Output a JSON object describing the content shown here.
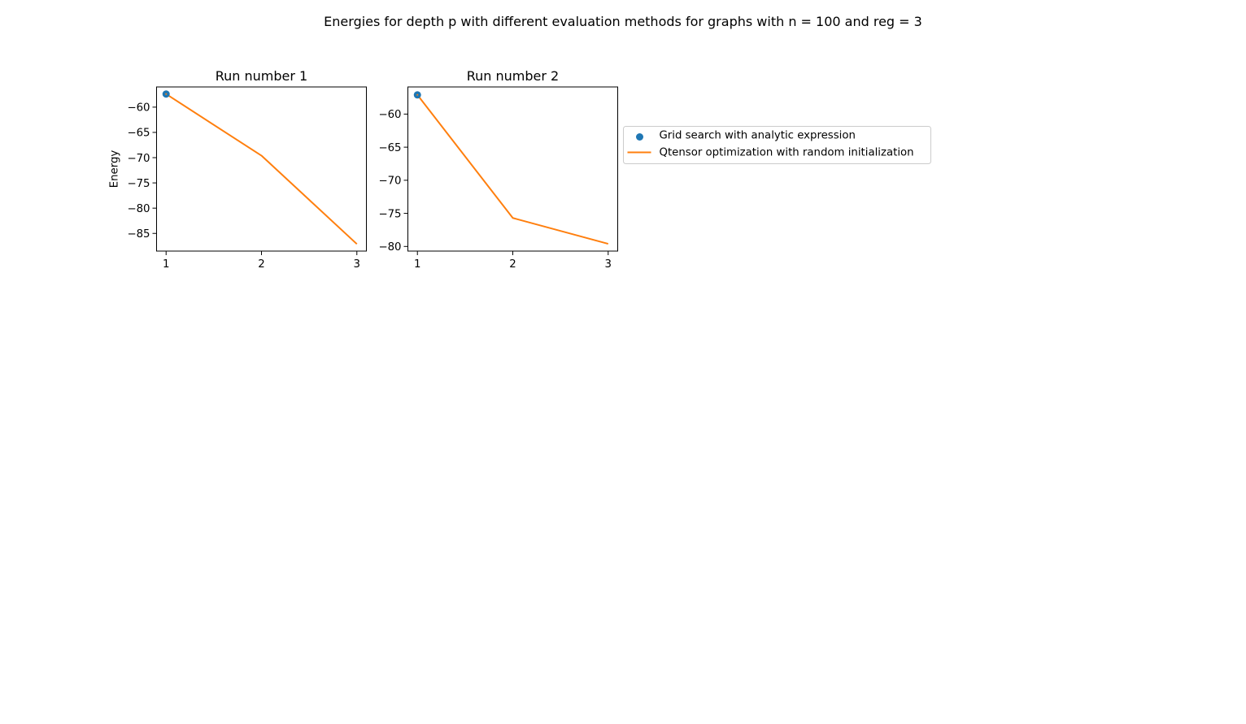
{
  "figure": {
    "suptitle": "Energies for depth p with different evaluation methods for graphs with n = 100 and reg = 3"
  },
  "legend": {
    "placement": "right of panels",
    "entries": [
      {
        "label": "Grid search with analytic expression",
        "kind": "marker",
        "color": "#1f77b4"
      },
      {
        "label": "Qtensor optimization with random initialization",
        "kind": "line",
        "color": "#ff7f0e"
      }
    ]
  },
  "chart_data": [
    {
      "type": "line",
      "title": "Run number 1",
      "xlabel": "",
      "ylabel": "Energy",
      "xlim": [
        0.9,
        3.1
      ],
      "ylim": [
        -88.5,
        -56.0
      ],
      "xticks": [
        1,
        2,
        3
      ],
      "yticks": [
        -85,
        -80,
        -75,
        -70,
        -65,
        -60
      ],
      "grid": false,
      "series": [
        {
          "name": "Grid search with analytic expression",
          "kind": "scatter",
          "color": "#1f77b4",
          "x": [
            1
          ],
          "y": [
            -57.4
          ]
        },
        {
          "name": "Qtensor optimization with random initialization",
          "kind": "line",
          "color": "#ff7f0e",
          "x": [
            1,
            2,
            3
          ],
          "y": [
            -57.4,
            -69.6,
            -87.1
          ]
        }
      ]
    },
    {
      "type": "line",
      "title": "Run number 2",
      "xlabel": "",
      "ylabel": "",
      "xlim": [
        0.9,
        3.1
      ],
      "ylim": [
        -80.7,
        -55.9
      ],
      "xticks": [
        1,
        2,
        3
      ],
      "yticks": [
        -80,
        -75,
        -70,
        -65,
        -60
      ],
      "grid": false,
      "series": [
        {
          "name": "Grid search with analytic expression",
          "kind": "scatter",
          "color": "#1f77b4",
          "x": [
            1
          ],
          "y": [
            -57.1
          ]
        },
        {
          "name": "Qtensor optimization with random initialization",
          "kind": "line",
          "color": "#ff7f0e",
          "x": [
            1,
            2,
            3
          ],
          "y": [
            -57.1,
            -75.7,
            -79.6
          ]
        }
      ]
    }
  ]
}
